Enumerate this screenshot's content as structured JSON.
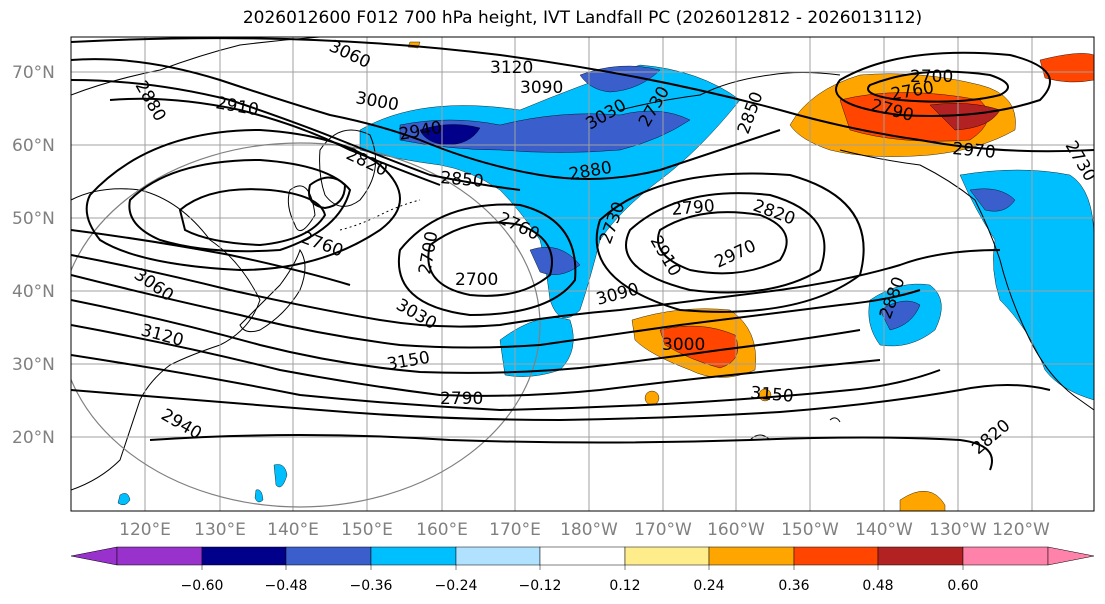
{
  "title": "2026012600 F012 700 hPa height, IVT Landfall PC (2026012812 - 2026013112)",
  "map": {
    "lat_labels": [
      "70°N",
      "60°N",
      "50°N",
      "40°N",
      "30°N",
      "20°N"
    ],
    "lon_labels": [
      "120°E",
      "130°E",
      "140°E",
      "150°E",
      "160°E",
      "170°E",
      "180°W",
      "170°W",
      "160°W",
      "150°W",
      "140°W",
      "130°W",
      "120°W"
    ],
    "contour_labels": [
      "2880",
      "3060",
      "2910",
      "3000",
      "3120",
      "3090",
      "2700",
      "2760",
      "2790",
      "2850",
      "2940",
      "3030",
      "2820",
      "2880",
      "2730",
      "2760",
      "2850",
      "2970",
      "2760",
      "2790",
      "2820",
      "2730",
      "2700",
      "2700",
      "2970",
      "2910",
      "3030",
      "3090",
      "3150",
      "3060",
      "3120",
      "2790",
      "2940",
      "3000",
      "3150",
      "2880",
      "2820",
      "2730"
    ]
  },
  "colorbar": {
    "ticks": [
      "−0.60",
      "−0.48",
      "−0.36",
      "−0.24",
      "−0.12",
      "0.12",
      "0.24",
      "0.36",
      "0.48",
      "0.60"
    ],
    "colors": {
      "lt_-0.60": "#9932cc",
      "-0.60_-0.48": "#00008b",
      "-0.48_-0.36": "#3a5fcd",
      "-0.36_-0.24": "#00bfff",
      "-0.24_-0.12": "#b0e2ff",
      "-0.12_0.12": "#ffffff",
      "0.12_0.24": "#ffec8b",
      "0.24_0.36": "#ffa500",
      "0.36_0.48": "#ff4500",
      "0.48_0.60": "#b22222",
      "gt_0.60": "#ff82ab"
    }
  }
}
